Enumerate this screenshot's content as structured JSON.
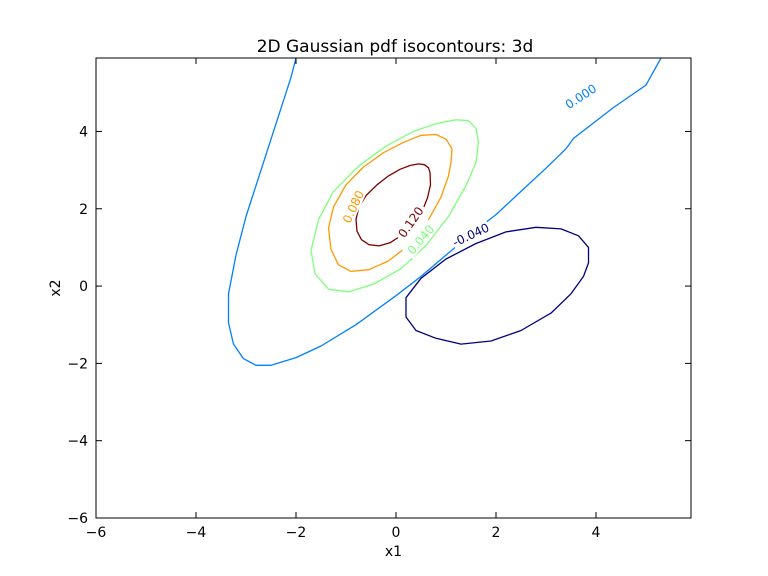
{
  "chart_data": {
    "type": "contour",
    "title": "2D Gaussian pdf isocontours: 3d",
    "xlabel": "x1",
    "ylabel": "x2",
    "xlim": [
      -6,
      5.9
    ],
    "ylim": [
      -6,
      5.9
    ],
    "xticks": [
      -6,
      -4,
      -2,
      0,
      2,
      4
    ],
    "yticks": [
      -6,
      -4,
      -2,
      0,
      2,
      4
    ],
    "xtick_labels": [
      "−6",
      "−4",
      "−2",
      "0",
      "2",
      "4"
    ],
    "ytick_labels": [
      "−6",
      "−4",
      "−2",
      "0",
      "2",
      "4"
    ],
    "grid": false,
    "levels": [
      {
        "label": "0.120",
        "color": "#7f0000",
        "kind": "ellipse",
        "center": [
          0.0,
          1.98
        ],
        "polyline": [
          [
            0.68,
            2.94
          ],
          [
            0.65,
            3.06
          ],
          [
            0.57,
            3.14
          ],
          [
            0.45,
            3.16
          ],
          [
            0.28,
            3.12
          ],
          [
            0.08,
            3.02
          ],
          [
            -0.15,
            2.85
          ],
          [
            -0.38,
            2.62
          ],
          [
            -0.6,
            2.34
          ],
          [
            -0.74,
            2.05
          ],
          [
            -0.8,
            1.73
          ],
          [
            -0.78,
            1.42
          ],
          [
            -0.69,
            1.2
          ],
          [
            -0.54,
            1.07
          ],
          [
            -0.34,
            1.04
          ],
          [
            -0.12,
            1.12
          ],
          [
            0.12,
            1.32
          ],
          [
            0.35,
            1.6
          ],
          [
            0.52,
            1.92
          ],
          [
            0.63,
            2.28
          ],
          [
            0.69,
            2.62
          ],
          [
            0.68,
            2.94
          ]
        ]
      },
      {
        "label": "0.080",
        "color": "#ff9900",
        "kind": "ellipse",
        "polyline": [
          [
            1.1,
            3.2
          ],
          [
            1.12,
            3.55
          ],
          [
            1.0,
            3.8
          ],
          [
            0.8,
            3.92
          ],
          [
            0.5,
            3.9
          ],
          [
            0.15,
            3.72
          ],
          [
            -0.25,
            3.45
          ],
          [
            -0.65,
            3.08
          ],
          [
            -1.0,
            2.62
          ],
          [
            -1.25,
            2.05
          ],
          [
            -1.35,
            1.5
          ],
          [
            -1.3,
            0.95
          ],
          [
            -1.15,
            0.55
          ],
          [
            -0.9,
            0.38
          ],
          [
            -0.55,
            0.42
          ],
          [
            -0.15,
            0.65
          ],
          [
            0.25,
            1.05
          ],
          [
            0.6,
            1.6
          ],
          [
            0.9,
            2.3
          ],
          [
            1.05,
            2.85
          ],
          [
            1.1,
            3.2
          ]
        ]
      },
      {
        "label": "0.040",
        "color": "#7dff7a",
        "kind": "ellipse",
        "polyline": [
          [
            1.65,
            3.72
          ],
          [
            1.6,
            4.08
          ],
          [
            1.45,
            4.28
          ],
          [
            1.2,
            4.3
          ],
          [
            0.8,
            4.2
          ],
          [
            0.35,
            4.0
          ],
          [
            -0.2,
            3.62
          ],
          [
            -0.75,
            3.1
          ],
          [
            -1.25,
            2.45
          ],
          [
            -1.55,
            1.72
          ],
          [
            -1.7,
            0.92
          ],
          [
            -1.62,
            0.32
          ],
          [
            -1.35,
            -0.08
          ],
          [
            -0.95,
            -0.15
          ],
          [
            -0.45,
            0.05
          ],
          [
            0.1,
            0.45
          ],
          [
            0.6,
            1.05
          ],
          [
            1.05,
            1.8
          ],
          [
            1.4,
            2.6
          ],
          [
            1.6,
            3.2
          ],
          [
            1.65,
            3.72
          ]
        ]
      },
      {
        "label": "0.000",
        "color": "#0080ff",
        "kind": "curve",
        "polyline": [
          [
            -2.0,
            5.9
          ],
          [
            -2.1,
            5.4
          ],
          [
            -2.3,
            4.6
          ],
          [
            -2.5,
            3.8
          ],
          [
            -2.75,
            2.8
          ],
          [
            -3.0,
            1.8
          ],
          [
            -3.2,
            0.8
          ],
          [
            -3.35,
            -0.2
          ],
          [
            -3.35,
            -0.95
          ],
          [
            -3.25,
            -1.5
          ],
          [
            -3.05,
            -1.88
          ],
          [
            -2.8,
            -2.05
          ],
          [
            -2.5,
            -2.05
          ],
          [
            -2.0,
            -1.85
          ],
          [
            -1.5,
            -1.55
          ],
          [
            -0.8,
            -1.0
          ],
          [
            0.0,
            -0.25
          ],
          [
            0.5,
            0.25
          ],
          [
            1.0,
            0.8
          ],
          [
            1.5,
            1.35
          ],
          [
            2.0,
            1.85
          ],
          [
            2.5,
            2.45
          ],
          [
            3.0,
            3.05
          ],
          [
            3.4,
            3.55
          ],
          [
            3.55,
            3.82
          ],
          [
            4.35,
            4.62
          ],
          [
            5.0,
            5.2
          ],
          [
            5.3,
            5.9
          ]
        ]
      },
      {
        "label": "-0.040",
        "color": "#00007f",
        "kind": "ellipse",
        "polyline": [
          [
            3.85,
            0.6
          ],
          [
            3.85,
            1.0
          ],
          [
            3.65,
            1.3
          ],
          [
            3.3,
            1.48
          ],
          [
            2.8,
            1.52
          ],
          [
            2.2,
            1.4
          ],
          [
            1.6,
            1.1
          ],
          [
            1.0,
            0.7
          ],
          [
            0.5,
            0.2
          ],
          [
            0.2,
            -0.3
          ],
          [
            0.2,
            -0.8
          ],
          [
            0.4,
            -1.15
          ],
          [
            0.8,
            -1.35
          ],
          [
            1.3,
            -1.5
          ],
          [
            1.9,
            -1.42
          ],
          [
            2.5,
            -1.15
          ],
          [
            3.1,
            -0.7
          ],
          [
            3.5,
            -0.2
          ],
          [
            3.75,
            0.25
          ],
          [
            3.85,
            0.6
          ]
        ]
      }
    ]
  }
}
